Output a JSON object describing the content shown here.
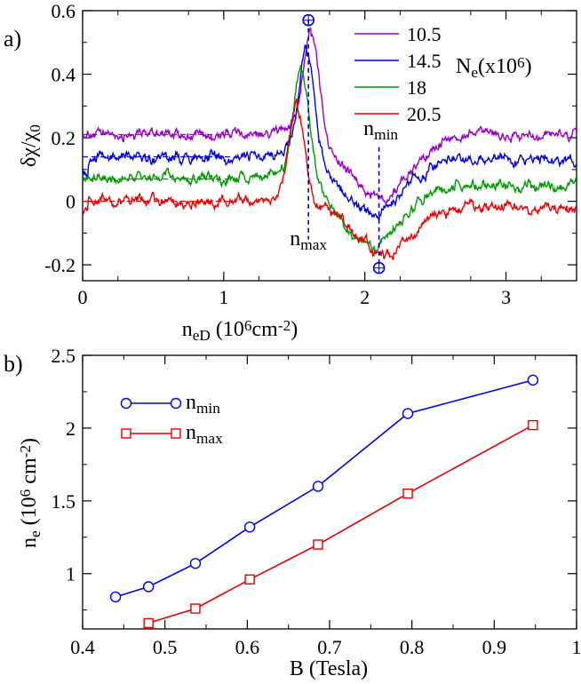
{
  "chart_data": [
    {
      "panel_label": "a)",
      "type": "line",
      "xlabel": "n",
      "xlabel_sub": "eD",
      "xlabel_units": " (10",
      "xlabel_units_sup": "6",
      "xlabel_units2": "cm",
      "xlabel_units2_sup": "-2",
      "xlabel_units3": ")",
      "ylabel": "δχ/χ",
      "ylabel_sub": "0",
      "xlim": [
        0,
        3.5
      ],
      "ylim": [
        -0.25,
        0.6
      ],
      "xticks": [
        0,
        1,
        2,
        3
      ],
      "xtick_labels": [
        "0",
        "1",
        "2",
        "3"
      ],
      "yticks": [
        -0.2,
        0,
        0.2,
        0.4,
        0.6
      ],
      "ytick_labels": [
        "-0.2",
        "0",
        "0.2",
        "0.4",
        "0.6"
      ],
      "legend_title": "N",
      "legend_title_sub": "e",
      "legend_title_rest": "(x10",
      "legend_title_sup": "6",
      "legend_title_end": ")",
      "legend_position": "top-right",
      "series": [
        {
          "name": "10.5",
          "color": "#9900cc",
          "baseline": 0.21,
          "peak_x": 1.62,
          "peak_y": 0.53,
          "dip_x": 2.1,
          "dip_y": 0.01,
          "tail_y": 0.21
        },
        {
          "name": "14.5",
          "color": "#0000e6",
          "baseline": 0.14,
          "peak_x": 1.59,
          "peak_y": 0.47,
          "dip_x": 2.05,
          "dip_y": -0.04,
          "tail_y": 0.13
        },
        {
          "name": "18",
          "color": "#009900",
          "baseline": 0.07,
          "peak_x": 1.55,
          "peak_y": 0.4,
          "dip_x": 2.05,
          "dip_y": -0.14,
          "tail_y": 0.05
        },
        {
          "name": "20.5",
          "color": "#e60000",
          "baseline": 0.0,
          "peak_x": 1.52,
          "peak_y": 0.29,
          "dip_x": 2.15,
          "dip_y": -0.17,
          "tail_y": -0.02
        }
      ],
      "markers": {
        "nmax_x": 1.6,
        "nmax_y": 0.57,
        "nmin_x": 2.1,
        "nmin_y": -0.21
      },
      "annotations": {
        "nmax_label": "n",
        "nmax_sub": "max",
        "nmin_label": "n",
        "nmin_sub": "min"
      },
      "annotation_color": "#0000cc"
    },
    {
      "panel_label": "b)",
      "type": "line",
      "xlabel": "B (Tesla)",
      "ylabel": "n",
      "ylabel_sub": "e",
      "ylabel_units": " (10",
      "ylabel_units_sup": "6",
      "ylabel_units2": " cm",
      "ylabel_units2_sup": "-2",
      "ylabel_units3": ")",
      "xlim": [
        0.4,
        1.0
      ],
      "ylim": [
        0.62,
        2.5
      ],
      "xticks": [
        0.4,
        0.5,
        0.6,
        0.7,
        0.8,
        0.9,
        1.0
      ],
      "xtick_labels": [
        "0.4",
        "0.5",
        "0.6",
        "0.7",
        "0.8",
        "0.9",
        "1"
      ],
      "yticks": [
        1,
        1.5,
        2,
        2.5
      ],
      "ytick_labels": [
        "1",
        "1.5",
        "2",
        "2.5"
      ],
      "legend_position": "top-left",
      "series": [
        {
          "name": "n",
          "name_sub": "min",
          "color": "#0000e6",
          "marker": "circle",
          "x": [
            0.44,
            0.48,
            0.537,
            0.603,
            0.686,
            0.795,
            0.947
          ],
          "y": [
            0.84,
            0.91,
            1.07,
            1.32,
            1.6,
            2.1,
            2.33
          ]
        },
        {
          "name": "n",
          "name_sub": "max",
          "color": "#e60000",
          "marker": "square",
          "x": [
            0.48,
            0.537,
            0.603,
            0.686,
            0.795,
            0.947
          ],
          "y": [
            0.66,
            0.76,
            0.96,
            1.2,
            1.55,
            2.02
          ]
        }
      ]
    }
  ]
}
